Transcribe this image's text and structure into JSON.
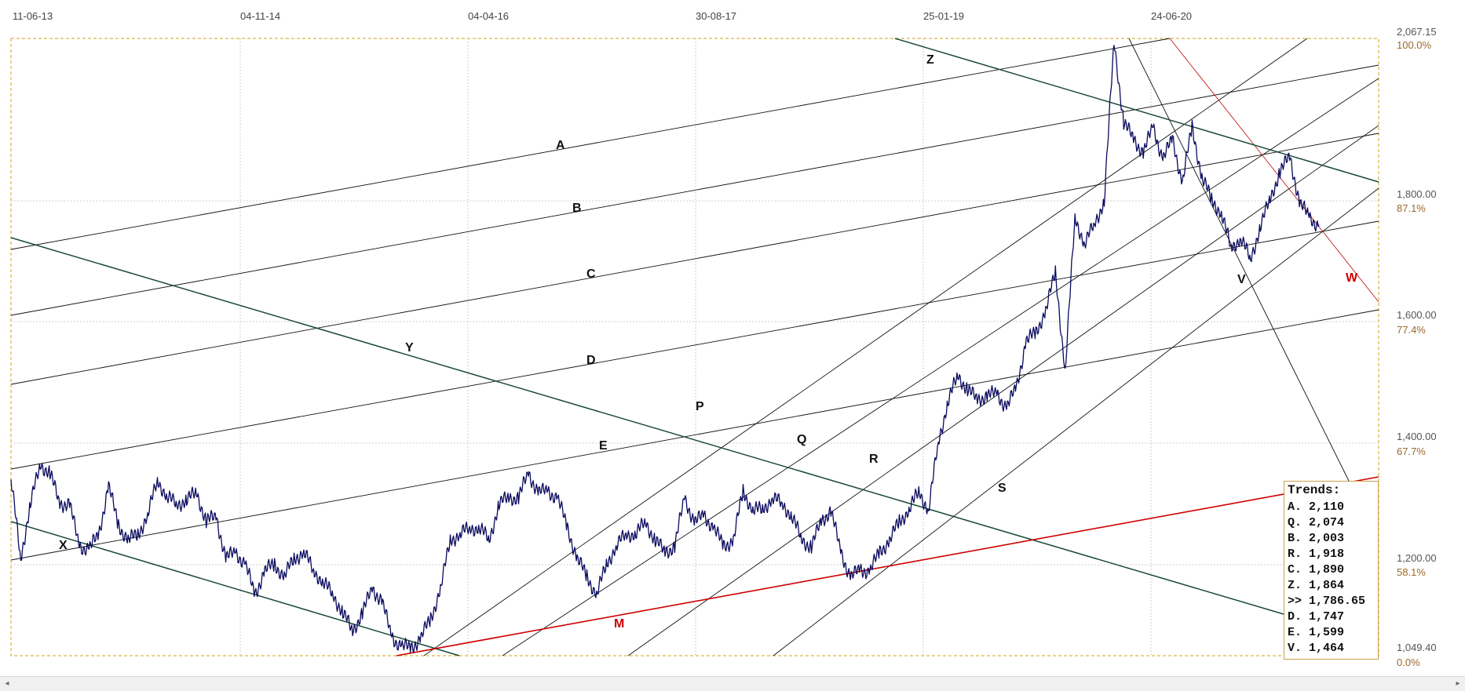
{
  "chart_data": {
    "type": "line",
    "title": "",
    "x_ticks": [
      "11-06-13",
      "04-11-14",
      "04-04-16",
      "30-08-17",
      "25-01-19",
      "24-06-20"
    ],
    "y_ticks": [
      "2,067.15",
      "1,800.00",
      "1,600.00",
      "1,400.00",
      "1,200.00",
      "1,049.40"
    ],
    "pct_ticks": [
      "100.0%",
      "87.1%",
      "77.4%",
      "67.7%",
      "58.1%",
      "0.0%"
    ],
    "ylim": [
      1049.4,
      2067.15
    ],
    "grid": true,
    "series": [
      {
        "color": "#0a0a5e",
        "values": [
          1340,
          1210,
          1300,
          1365,
          1350,
          1300,
          1300,
          1230,
          1225,
          1250,
          1330,
          1265,
          1240,
          1250,
          1280,
          1340,
          1310,
          1300,
          1305,
          1320,
          1270,
          1280,
          1210,
          1220,
          1200,
          1150,
          1190,
          1200,
          1180,
          1210,
          1220,
          1190,
          1170,
          1150,
          1120,
          1090,
          1120,
          1160,
          1140,
          1080,
          1065,
          1062,
          1080,
          1110,
          1160,
          1240,
          1250,
          1260,
          1260,
          1240,
          1300,
          1310,
          1310,
          1350,
          1320,
          1320,
          1310,
          1260,
          1210,
          1180,
          1150,
          1200,
          1230,
          1250,
          1250,
          1270,
          1240,
          1220,
          1230,
          1310,
          1270,
          1280,
          1260,
          1230,
          1240,
          1320,
          1290,
          1290,
          1310,
          1300,
          1280,
          1240,
          1230,
          1270,
          1290,
          1220,
          1180,
          1190,
          1190,
          1220,
          1240,
          1270,
          1290,
          1320,
          1290,
          1400,
          1470,
          1510,
          1490,
          1470,
          1480,
          1480,
          1460,
          1490,
          1570,
          1580,
          1620,
          1680,
          1520,
          1770,
          1730,
          1760,
          1800,
          2060,
          1930,
          1900,
          1880,
          1920,
          1870,
          1900,
          1830,
          1920,
          1840,
          1800,
          1780,
          1720,
          1740,
          1700,
          1760,
          1800,
          1850,
          1870,
          1800,
          1770,
          1760
        ]
      }
    ],
    "trend_lines": [
      {
        "label": "A",
        "value": "2,110"
      },
      {
        "label": "B",
        "value": "2,003"
      },
      {
        "label": "C",
        "value": "1,890"
      },
      {
        "label": "D",
        "value": "1,747"
      },
      {
        "label": "E",
        "value": "1,599"
      },
      {
        "label": "P"
      },
      {
        "label": "Q",
        "value": "2,074"
      },
      {
        "label": "R",
        "value": "1,918"
      },
      {
        "label": "S"
      },
      {
        "label": "V",
        "value": "1,464"
      },
      {
        "label": "W"
      },
      {
        "label": "X"
      },
      {
        "label": "Y"
      },
      {
        "label": "Z",
        "value": "1,864"
      },
      {
        "label": "M"
      }
    ]
  },
  "trends_box": {
    "title": "Trends:",
    "rows": [
      "A. 2,110",
      "Q. 2,074",
      "B. 2,003",
      "R. 1,918",
      "C. 1,890",
      "Z. 1,864",
      ">> 1,786.65",
      "D. 1,747",
      "E. 1,599",
      "V. 1,464"
    ]
  },
  "scrollbar": {
    "left_arrow": "◂",
    "right_arrow": "▸"
  }
}
